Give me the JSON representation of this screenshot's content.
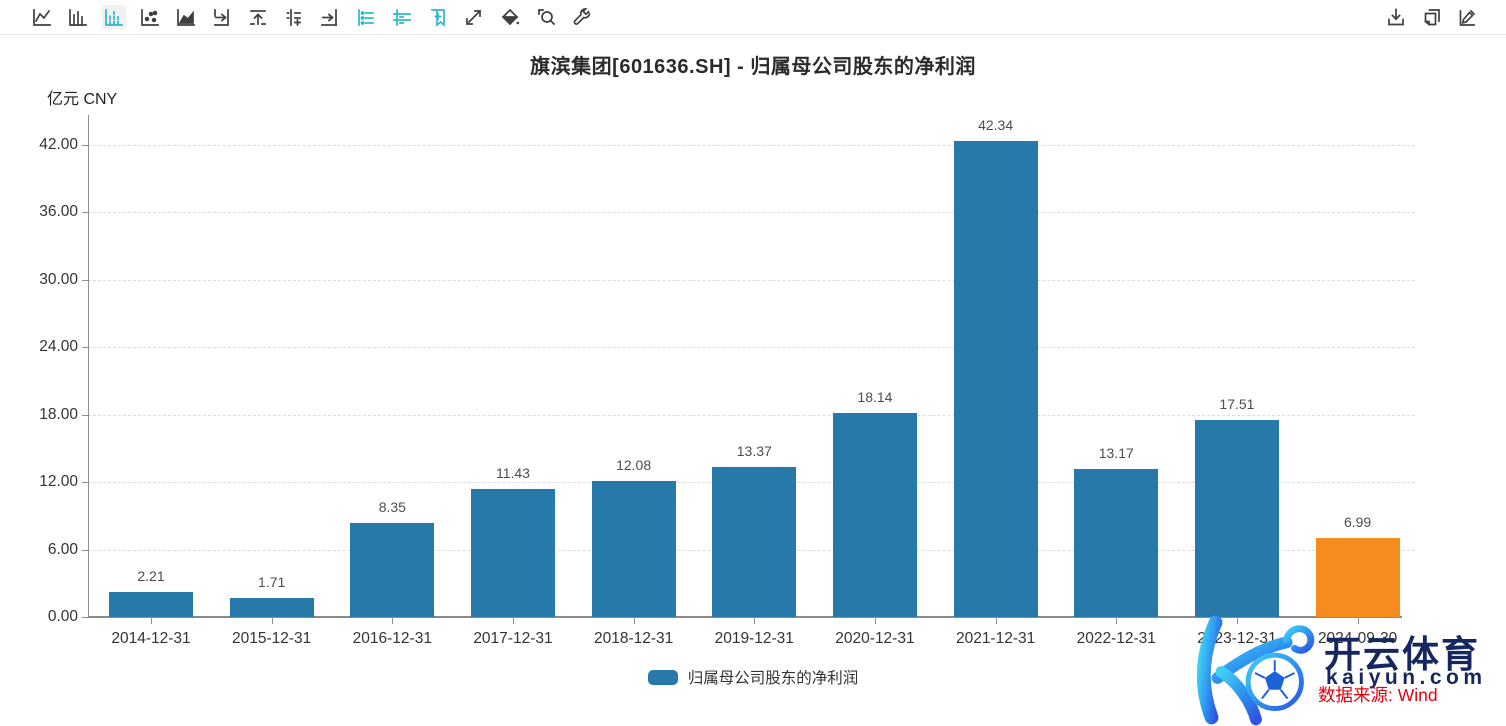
{
  "toolbar": {
    "active_index": 2,
    "left_icons": [
      "line-chart-icon",
      "column-chart-icon",
      "column-dashed-chart-icon",
      "scatter-chart-icon",
      "area-chart-icon",
      "shift-right-icon",
      "export-top-icon",
      "threshold-icon",
      "align-right-icon",
      "list-detail-icon",
      "list-rows-icon",
      "bookmark-add-icon",
      "trend-arrow-icon",
      "fill-color-icon",
      "zoom-search-icon",
      "settings-wrench-icon"
    ],
    "right_icons": [
      "download-icon",
      "copy-icon",
      "edit-icon"
    ]
  },
  "chart": {
    "title": "旗滨集团[601636.SH] - 归属母公司股东的净利润",
    "unit_label": "亿元  CNY",
    "legend_label": "归属母公司股东的净利润"
  },
  "chart_data": {
    "type": "bar",
    "title": "旗滨集团[601636.SH] - 归属母公司股东的净利润",
    "ylabel": "亿元 CNY",
    "xlabel": "",
    "categories": [
      "2014-12-31",
      "2015-12-31",
      "2016-12-31",
      "2017-12-31",
      "2018-12-31",
      "2019-12-31",
      "2020-12-31",
      "2021-12-31",
      "2022-12-31",
      "2023-12-31",
      "2024-09-30"
    ],
    "values": [
      2.21,
      1.71,
      8.35,
      11.43,
      12.08,
      13.37,
      18.14,
      42.34,
      13.17,
      17.51,
      6.99
    ],
    "value_labels": [
      "2.21",
      "1.71",
      "8.35",
      "11.43",
      "12.08",
      "13.37",
      "18.14",
      "42.34",
      "13.17",
      "17.51",
      "6.99"
    ],
    "ylim": [
      0,
      44.7
    ],
    "y_ticks": [
      0,
      6,
      12,
      18,
      24,
      30,
      36,
      42
    ],
    "y_tick_labels": [
      "0.00",
      "6.00",
      "12.00",
      "18.00",
      "24.00",
      "30.00",
      "36.00",
      "42.00"
    ],
    "grid": true,
    "legend": [
      "归属母公司股东的净利润"
    ],
    "legend_position": "bottom",
    "bar_color": "#2679A8",
    "highlight_index": 10,
    "highlight_color": "#F78C1E"
  },
  "colors": {
    "accent_teal": "#2BB8CE",
    "icon_gray": "#3f3f3f",
    "grid": "#dddddd",
    "axis": "#8f8f8f"
  },
  "watermark": {
    "brand_cn": "开云体育",
    "brand_domain": "kaiyun.com",
    "source_note": "数据来源: Wind",
    "navy": "#15275E",
    "red": "#E60012"
  }
}
